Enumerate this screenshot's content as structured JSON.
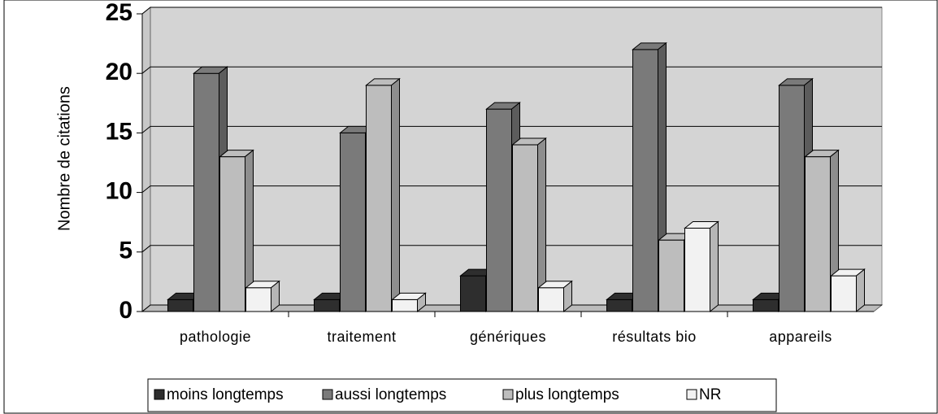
{
  "chart_data": {
    "type": "bar3d",
    "y_label": "Nombre de citations",
    "categories": [
      "pathologie",
      "traitement",
      "génériques",
      "résultats bio",
      "appareils"
    ],
    "series": [
      {
        "name": "moins longtemps",
        "color": "#2e2e2e",
        "values": [
          1,
          1,
          3,
          1,
          1
        ]
      },
      {
        "name": "aussi longtemps",
        "color": "#7a7a7a",
        "values": [
          20,
          15,
          17,
          22,
          19
        ]
      },
      {
        "name": "plus longtemps",
        "color": "#bdbdbd",
        "values": [
          13,
          19,
          14,
          6,
          13
        ]
      },
      {
        "name": "NR",
        "color": "#f2f2f2",
        "values": [
          2,
          1,
          2,
          7,
          3
        ]
      }
    ],
    "ylim": [
      0,
      25
    ],
    "yticks": [
      0,
      5,
      10,
      15,
      20,
      25
    ],
    "grid": true,
    "legend": "bottom"
  }
}
